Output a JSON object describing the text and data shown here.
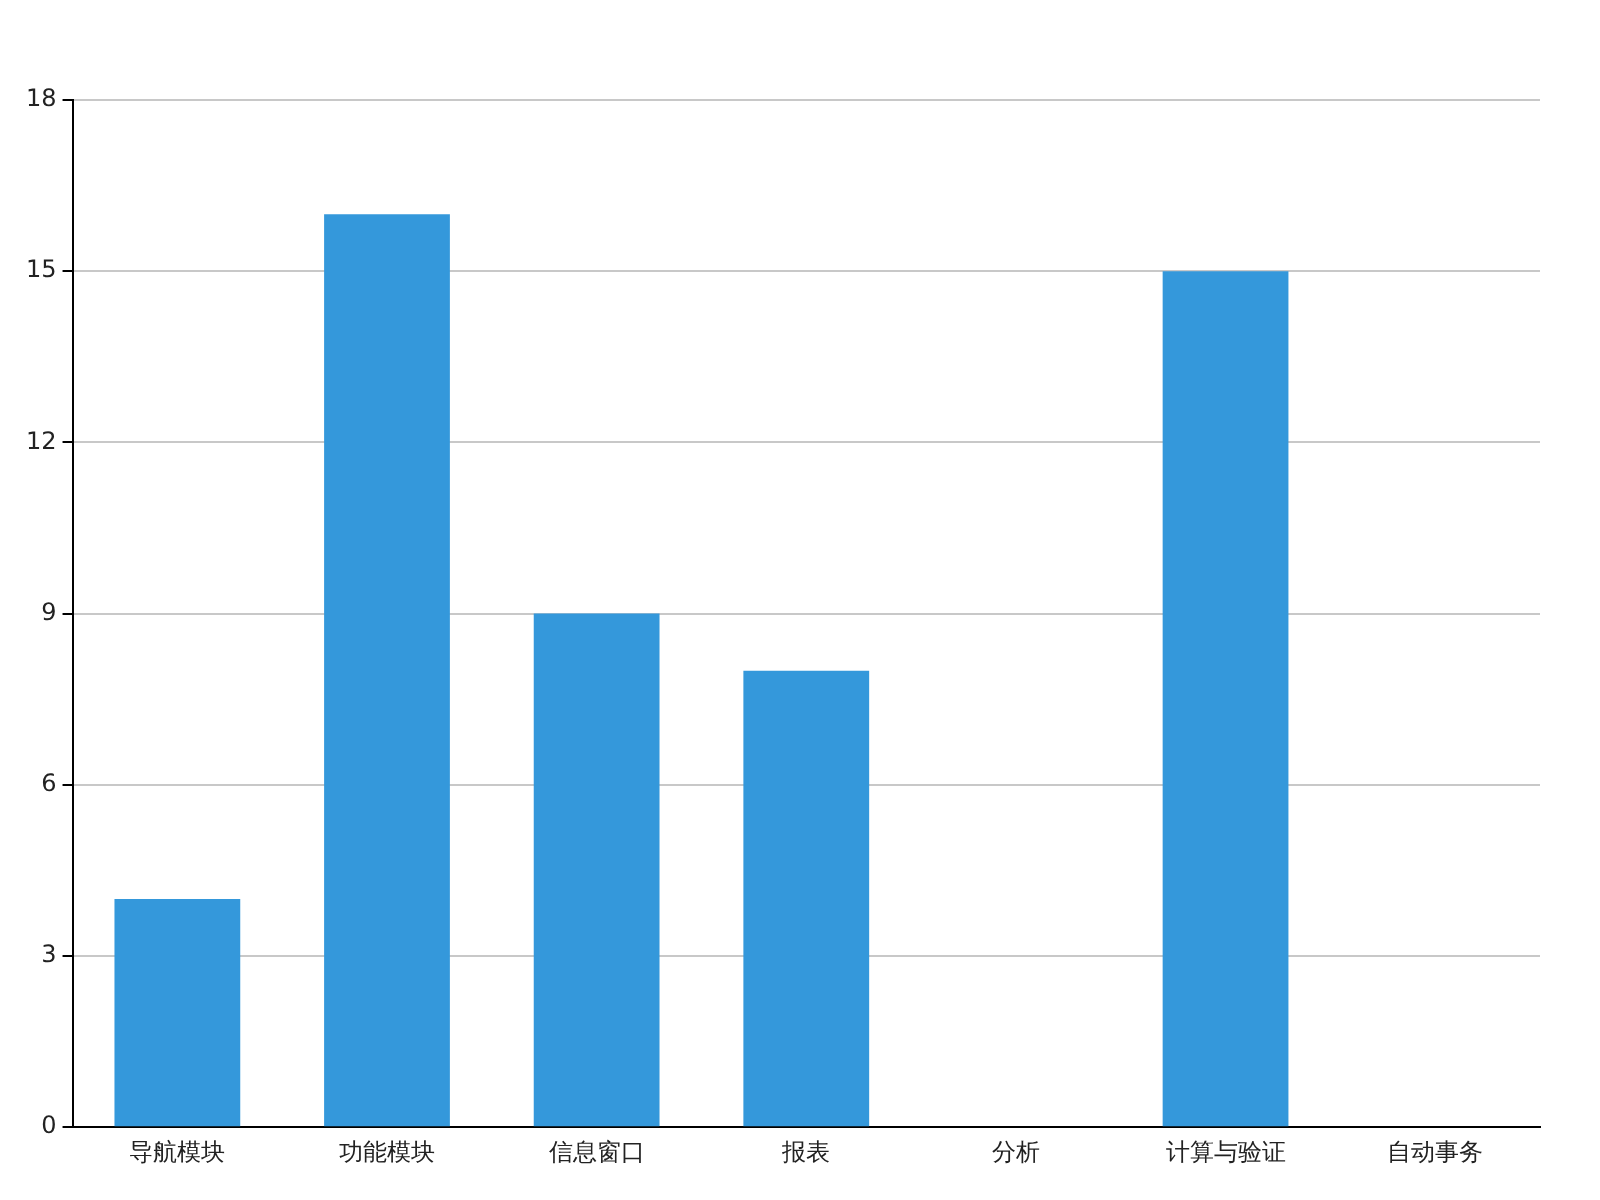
{
  "chart_data": {
    "type": "bar",
    "categories": [
      "导航模块",
      "功能模块",
      "信息窗口",
      "报表",
      "分析",
      "计算与验证",
      "自动事务"
    ],
    "values": [
      4,
      16,
      9,
      8,
      0,
      15,
      0
    ],
    "color": "#3498db",
    "ylim": [
      0,
      18
    ],
    "yticks": [
      0,
      3,
      6,
      9,
      12,
      15,
      18
    ],
    "grid": "y",
    "legend": false
  }
}
